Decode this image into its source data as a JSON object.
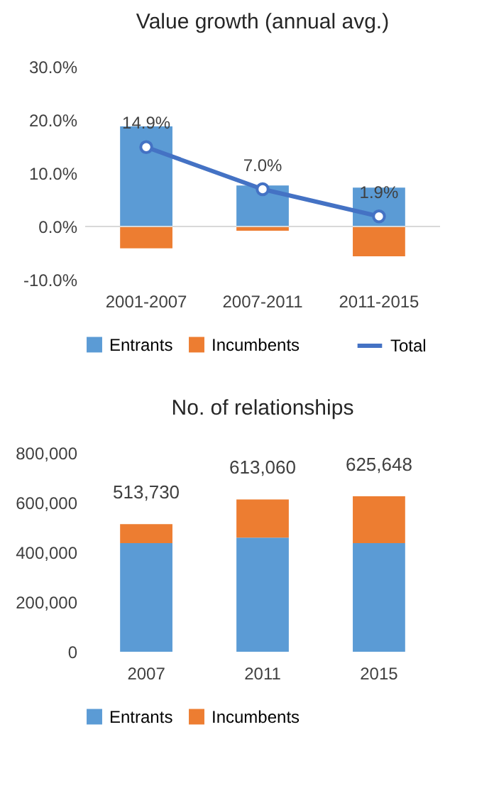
{
  "chart_data": [
    {
      "type": "bar",
      "title": "Value growth (annual avg.)",
      "stacked": true,
      "categories": [
        "2001-2007",
        "2007-2011",
        "2011-2015"
      ],
      "series": [
        {
          "name": "Entrants",
          "color": "#5b9bd5",
          "values": [
            18.8,
            7.7,
            7.3
          ]
        },
        {
          "name": "Incumbents",
          "color": "#ed7d31",
          "values": [
            -4.1,
            -0.8,
            -5.6
          ]
        },
        {
          "name": "Total",
          "type": "line",
          "color": "#4472c4",
          "marker": "circle",
          "values": [
            14.9,
            7.0,
            1.9
          ],
          "value_labels": [
            "14.9%",
            "7.0%",
            "1.9%"
          ]
        }
      ],
      "ylim": [
        -10,
        30
      ],
      "yticks": [
        {
          "value": -10,
          "label": "-10.0%"
        },
        {
          "value": 0,
          "label": "0.0%"
        },
        {
          "value": 10,
          "label": "10.0%"
        },
        {
          "value": 20,
          "label": "20.0%"
        },
        {
          "value": 30,
          "label": "30.0%"
        }
      ],
      "ref_lines": [
        {
          "axis": "y",
          "value": 0,
          "color": "#d9d9d9"
        }
      ],
      "grid": false,
      "legend": "bottom"
    },
    {
      "type": "bar",
      "title": "No. of relationships",
      "stacked": true,
      "categories": [
        "2007",
        "2011",
        "2015"
      ],
      "series": [
        {
          "name": "Entrants",
          "color": "#5b9bd5",
          "values": [
            437000,
            459000,
            437000
          ]
        },
        {
          "name": "Incumbents",
          "color": "#ed7d31",
          "values": [
            76730,
            154060,
            188648
          ]
        }
      ],
      "totals": [
        "513,730",
        "613,060",
        "625,648"
      ],
      "ylim": [
        0,
        800000
      ],
      "yticks": [
        {
          "value": 0,
          "label": "0"
        },
        {
          "value": 200000,
          "label": "200,000"
        },
        {
          "value": 400000,
          "label": "400,000"
        },
        {
          "value": 600000,
          "label": "600,000"
        },
        {
          "value": 800000,
          "label": "800,000"
        }
      ],
      "grid": false,
      "legend": "bottom"
    }
  ]
}
